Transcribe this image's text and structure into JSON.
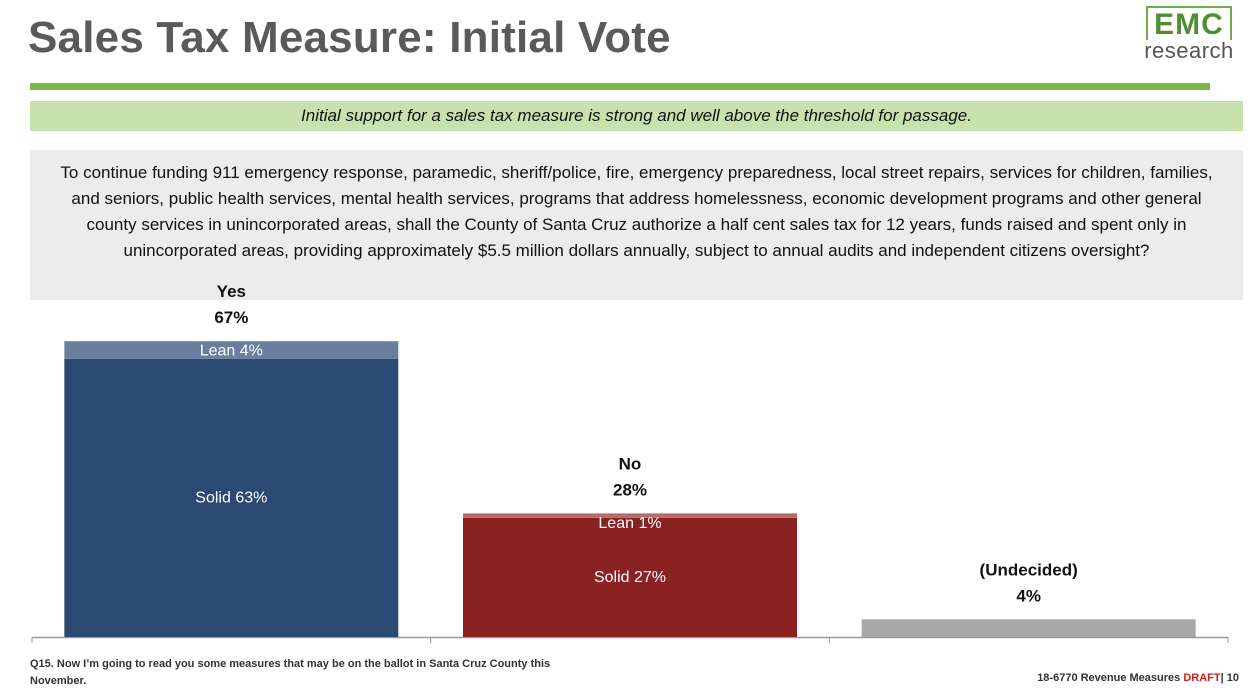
{
  "header": {
    "title": "Sales Tax Measure: Initial Vote",
    "logo_top": "EMC",
    "logo_bottom": "research",
    "subtitle": "Initial support for a sales tax measure is strong and well above the threshold for passage."
  },
  "question": "To continue funding 911 emergency response, paramedic, sheriff/police, fire, emergency preparedness, local street repairs, services for children, families, and seniors, public health services, mental health services, programs that address homelessness, economic development programs and other general county services in unincorporated areas, shall the County of Santa Cruz authorize a half cent sales tax for 12 years, funds raised and spent only in unincorporated areas, providing approximately $5.5 million dollars annually, subject to annual audits and independent citizens oversight?",
  "chart_data": {
    "type": "bar",
    "stacked": true,
    "ylim": [
      0,
      70
    ],
    "categories": [
      {
        "name": "Yes",
        "total": "67%",
        "segments": [
          {
            "label": "Solid 63%",
            "value": 63,
            "color": "#2b4a73"
          },
          {
            "label": "Lean 4%",
            "value": 4,
            "color": "#6b7ea0"
          }
        ]
      },
      {
        "name": "No",
        "total": "28%",
        "segments": [
          {
            "label": "Solid 27%",
            "value": 27,
            "color": "#8b2222"
          },
          {
            "label": "Lean 1%",
            "value": 1,
            "color": "#b46b6b"
          }
        ]
      },
      {
        "name": "(Undecided)",
        "total": "4%",
        "segments": [
          {
            "label": "",
            "value": 4,
            "color": "#a8a8a8"
          }
        ]
      }
    ]
  },
  "footer": {
    "footnote": "Q15. Now I’m going to read you some measures that may be on the ballot in Santa Cruz County this November.",
    "project": "18-6770 Revenue Measures ",
    "draft": "DRAFT",
    "page": "| 10"
  }
}
